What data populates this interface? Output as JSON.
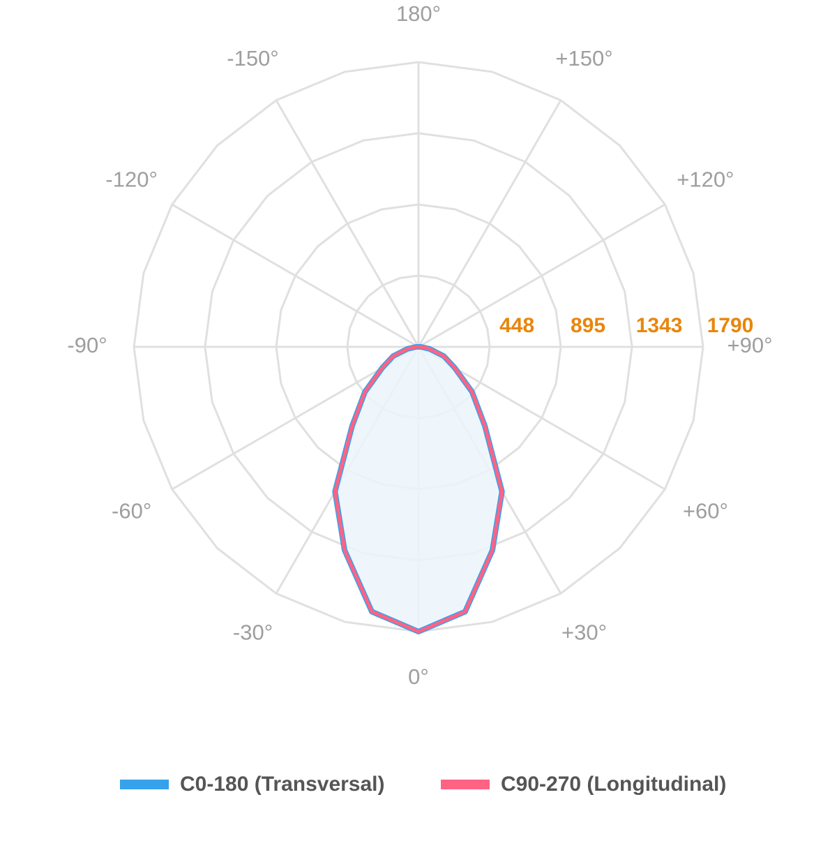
{
  "chart_data": {
    "type": "polar",
    "x": [
      -180,
      -170,
      -160,
      -150,
      -140,
      -130,
      -120,
      -110,
      -100,
      -90,
      -80,
      -70,
      -60,
      -50,
      -40,
      -30,
      -20,
      -10,
      0,
      10,
      20,
      30,
      40,
      50,
      60,
      70,
      80,
      90,
      100,
      110,
      120,
      130,
      140,
      150,
      160,
      170,
      180
    ],
    "series": [
      {
        "name": "C0-180 (Transversal)",
        "color": "#36a2eb",
        "fill": "#ebf4fc",
        "values": [
          0,
          0,
          0,
          0,
          0,
          0,
          0,
          0,
          0,
          15,
          70,
          170,
          263,
          440,
          650,
          1050,
          1360,
          1690,
          1790,
          1690,
          1360,
          1050,
          650,
          440,
          263,
          170,
          70,
          15,
          0,
          0,
          0,
          0,
          0,
          0,
          0,
          0,
          0
        ]
      },
      {
        "name": "C90-270 (Longitudinal)",
        "color": "#ff6384",
        "values": [
          0,
          0,
          0,
          0,
          0,
          0,
          0,
          0,
          0,
          15,
          70,
          170,
          263,
          440,
          650,
          1050,
          1360,
          1690,
          1790,
          1690,
          1360,
          1050,
          650,
          440,
          263,
          170,
          70,
          15,
          0,
          0,
          0,
          0,
          0,
          0,
          0,
          0,
          0
        ]
      }
    ],
    "rlim": [
      0,
      1790
    ],
    "rticks": [
      448,
      895,
      1343,
      1790
    ],
    "xticks": [
      {
        "value": 0,
        "label": "0°"
      },
      {
        "value": 30,
        "label": "+30°"
      },
      {
        "value": 60,
        "label": "+60°"
      },
      {
        "value": 90,
        "label": "+90°"
      },
      {
        "value": 120,
        "label": "+120°"
      },
      {
        "value": 150,
        "label": "+150°"
      },
      {
        "value": 180,
        "label": "180°"
      },
      {
        "value": -150,
        "label": "-150°"
      },
      {
        "value": -120,
        "label": "-120°"
      },
      {
        "value": -90,
        "label": "-90°"
      },
      {
        "value": -60,
        "label": "-60°"
      },
      {
        "value": -30,
        "label": "-30°"
      }
    ],
    "grid": true
  }
}
